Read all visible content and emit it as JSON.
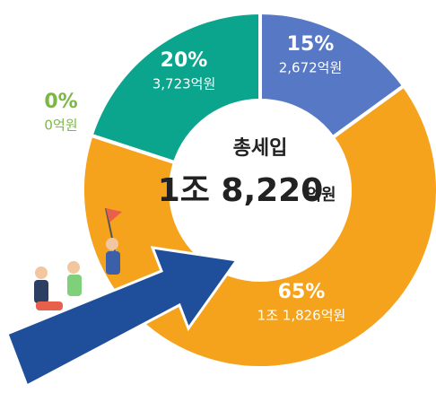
{
  "chart_data": {
    "type": "pie",
    "donut": true,
    "center_label": "총세입",
    "total": "1조 8,220",
    "total_unit": "억원",
    "categories": null,
    "values": [
      15,
      65,
      0,
      20
    ],
    "value_labels": [
      "15%",
      "65%",
      "0%",
      "20%"
    ],
    "amounts": [
      "2,672억원",
      "1조 1,826억원",
      "0억원",
      "3,723억원"
    ],
    "colors": [
      "#5779c5",
      "#f5a31d",
      "#7bb843",
      "#0aa58c"
    ]
  }
}
